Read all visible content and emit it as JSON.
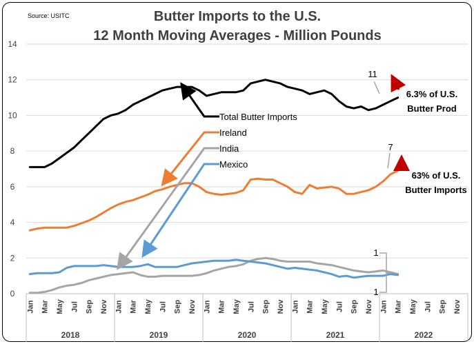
{
  "chart_data": {
    "type": "line",
    "source": "Source: USITC",
    "title": "Butter Imports to the U.S.",
    "subtitle": "12 Month Moving Averages -  Million Pounds",
    "ylim": [
      0,
      14
    ],
    "yticks": [
      "0",
      "2",
      "4",
      "6",
      "8",
      "10",
      "12",
      "14"
    ],
    "month_labels": [
      "Jan",
      "Mar",
      "May",
      "Jul",
      "Sep",
      "Nov"
    ],
    "years": [
      "2018",
      "2019",
      "2020",
      "2021",
      "2022"
    ],
    "grid": true,
    "series": [
      {
        "name": "Total Butter Imports",
        "color": "#000000",
        "values": [
          7.1,
          7.1,
          7.1,
          7.3,
          7.6,
          7.9,
          8.2,
          8.6,
          9.0,
          9.4,
          9.8,
          10.0,
          10.1,
          10.3,
          10.6,
          10.8,
          11.0,
          11.2,
          11.4,
          11.5,
          11.6,
          11.6,
          11.6,
          11.4,
          11.1,
          11.2,
          11.3,
          11.3,
          11.3,
          11.4,
          11.8,
          11.9,
          12.0,
          11.9,
          11.8,
          11.6,
          11.5,
          11.4,
          11.2,
          11.3,
          11.4,
          11.2,
          10.8,
          10.5,
          10.4,
          10.5,
          10.3,
          10.4,
          10.6,
          10.8,
          11.0
        ]
      },
      {
        "name": "Ireland",
        "color": "#ED7D31",
        "values": [
          3.55,
          3.65,
          3.7,
          3.7,
          3.7,
          3.7,
          3.8,
          3.95,
          4.1,
          4.3,
          4.55,
          4.8,
          5.0,
          5.15,
          5.25,
          5.4,
          5.55,
          5.75,
          5.85,
          6.0,
          6.1,
          6.2,
          6.2,
          6.0,
          5.7,
          5.6,
          5.55,
          5.6,
          5.65,
          5.8,
          6.4,
          6.45,
          6.4,
          6.4,
          6.2,
          6.0,
          5.7,
          5.6,
          6.1,
          5.9,
          5.95,
          6.0,
          5.9,
          5.6,
          5.6,
          5.7,
          5.8,
          6.0,
          6.3,
          6.7,
          6.9
        ]
      },
      {
        "name": "India",
        "color": "#A5A5A5",
        "values": [
          0.05,
          0.05,
          0.1,
          0.2,
          0.35,
          0.45,
          0.5,
          0.6,
          0.75,
          0.85,
          0.95,
          1.05,
          1.1,
          1.15,
          1.2,
          1.05,
          0.95,
          0.95,
          1.0,
          1.0,
          1.0,
          1.0,
          1.0,
          1.05,
          1.15,
          1.3,
          1.4,
          1.5,
          1.55,
          1.65,
          1.85,
          1.95,
          2.0,
          1.95,
          1.85,
          1.8,
          1.8,
          1.8,
          1.8,
          1.7,
          1.65,
          1.6,
          1.5,
          1.4,
          1.3,
          1.25,
          1.2,
          1.25,
          1.3,
          1.2,
          1.1
        ]
      },
      {
        "name": "Mexico",
        "color": "#5B9BD5",
        "values": [
          1.1,
          1.15,
          1.15,
          1.15,
          1.2,
          1.45,
          1.55,
          1.55,
          1.55,
          1.55,
          1.6,
          1.55,
          1.5,
          1.5,
          1.5,
          1.55,
          1.65,
          1.5,
          1.5,
          1.5,
          1.5,
          1.6,
          1.7,
          1.75,
          1.8,
          1.85,
          1.85,
          1.85,
          1.9,
          1.85,
          1.8,
          1.75,
          1.7,
          1.6,
          1.5,
          1.4,
          1.45,
          1.4,
          1.35,
          1.3,
          1.2,
          1.1,
          0.95,
          1.0,
          0.9,
          0.95,
          1.0,
          1.0,
          1.0,
          1.1,
          1.05
        ]
      }
    ],
    "annotations": {
      "total_end": "11",
      "ireland_end": "7",
      "small_top": "1",
      "small_bottom": "1",
      "note_total_l1": "6.3% of  U.S.",
      "note_total_l2": "Butter Prod",
      "note_ireland_l1": "63% of  U.S.",
      "note_ireland_l2": "Butter Imports"
    }
  }
}
